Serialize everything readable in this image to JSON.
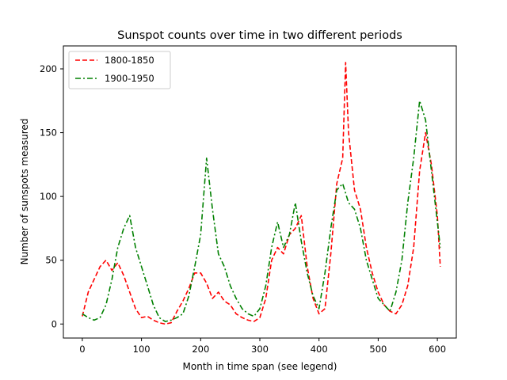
{
  "chart_data": {
    "type": "line",
    "title": "Sunspot counts over time in two different periods",
    "xlabel": "Month in time span (see legend)",
    "ylabel": "Number of sunspots measured",
    "xlim": [
      -32,
      632
    ],
    "ylim": [
      -11,
      218
    ],
    "xticks": [
      0,
      100,
      200,
      300,
      400,
      500,
      600
    ],
    "yticks": [
      0,
      50,
      100,
      150,
      200
    ],
    "grid": false,
    "legend": "top-left",
    "series": [
      {
        "name": "1800-1850",
        "color": "#ff0000",
        "dash": "dashed",
        "x": [
          0,
          10,
          20,
          30,
          40,
          50,
          60,
          70,
          80,
          90,
          100,
          110,
          120,
          130,
          140,
          150,
          160,
          170,
          180,
          190,
          200,
          210,
          220,
          230,
          240,
          250,
          260,
          270,
          280,
          290,
          300,
          310,
          320,
          330,
          340,
          350,
          360,
          370,
          380,
          390,
          400,
          410,
          420,
          430,
          440,
          445,
          450,
          460,
          470,
          480,
          490,
          500,
          510,
          520,
          530,
          540,
          550,
          560,
          570,
          580,
          590,
          600,
          605
        ],
        "y": [
          6,
          25,
          35,
          45,
          50,
          42,
          48,
          38,
          25,
          12,
          5,
          6,
          3,
          1,
          0,
          1,
          10,
          18,
          28,
          40,
          40,
          32,
          20,
          25,
          18,
          15,
          8,
          5,
          3,
          2,
          5,
          20,
          50,
          60,
          55,
          70,
          75,
          85,
          45,
          20,
          8,
          12,
          55,
          110,
          130,
          205,
          150,
          105,
          90,
          60,
          40,
          25,
          15,
          10,
          8,
          15,
          30,
          60,
          120,
          150,
          125,
          85,
          45
        ]
      },
      {
        "name": "1900-1950",
        "color": "#008000",
        "dash": "dashdot",
        "x": [
          0,
          10,
          20,
          30,
          40,
          50,
          60,
          70,
          80,
          90,
          100,
          110,
          120,
          130,
          140,
          150,
          160,
          170,
          180,
          190,
          200,
          210,
          220,
          230,
          240,
          250,
          260,
          270,
          280,
          290,
          300,
          310,
          320,
          330,
          340,
          350,
          360,
          370,
          380,
          390,
          400,
          410,
          420,
          430,
          440,
          450,
          460,
          470,
          480,
          490,
          500,
          510,
          520,
          530,
          540,
          550,
          560,
          570,
          580,
          590,
          600,
          605
        ],
        "y": [
          8,
          5,
          3,
          5,
          15,
          35,
          60,
          75,
          85,
          60,
          45,
          30,
          15,
          5,
          2,
          3,
          5,
          8,
          22,
          45,
          70,
          130,
          90,
          55,
          45,
          30,
          20,
          12,
          8,
          6,
          12,
          30,
          60,
          80,
          60,
          70,
          95,
          65,
          40,
          22,
          12,
          40,
          75,
          105,
          110,
          95,
          90,
          75,
          50,
          35,
          20,
          15,
          10,
          25,
          50,
          95,
          130,
          175,
          160,
          120,
          80,
          60
        ]
      }
    ]
  }
}
